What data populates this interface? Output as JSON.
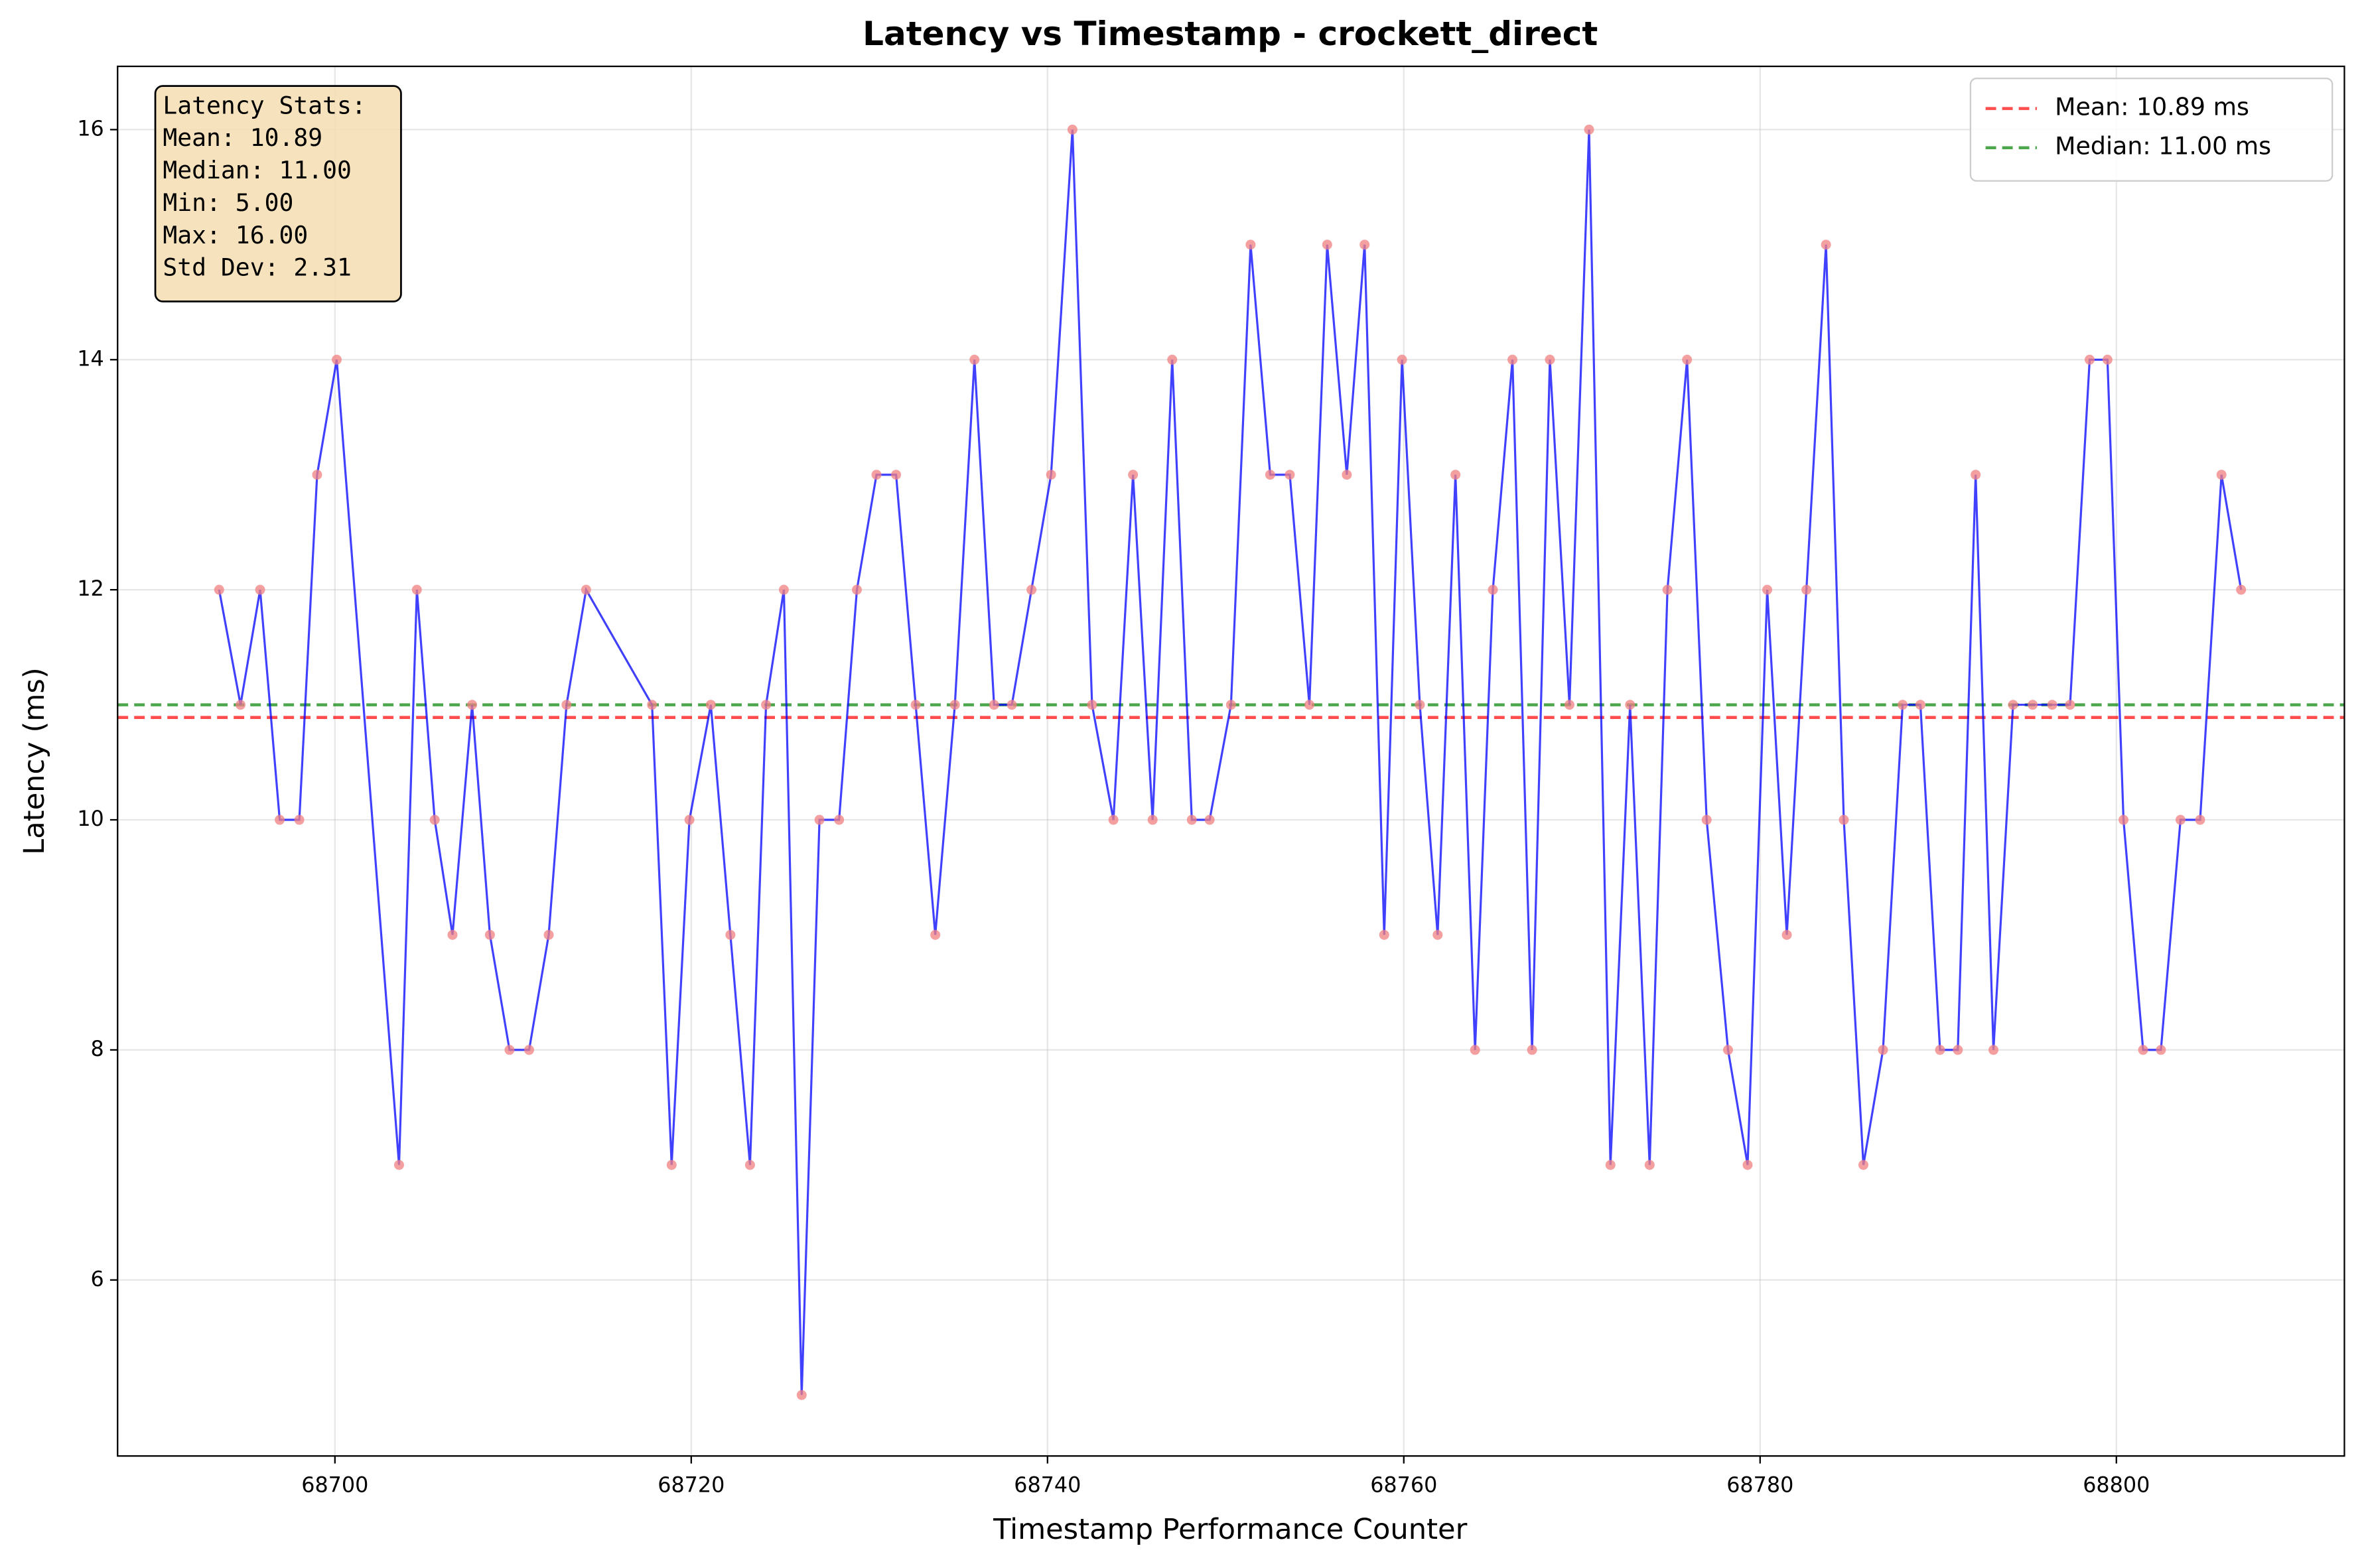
{
  "chart_data": {
    "type": "line",
    "title": "Latency vs Timestamp - crockett_direct",
    "x_label": "Timestamp Performance Counter",
    "y_label": "Latency (ms)",
    "xlim": [
      68687.8,
      68812.8
    ],
    "ylim": [
      4.47,
      16.55
    ],
    "xticks": [
      68700,
      68720,
      68740,
      68760,
      68780,
      68800
    ],
    "yticks": [
      6,
      8,
      10,
      12,
      14,
      16
    ],
    "grid": true,
    "legend_position": "upper right",
    "x": [
      68693.5,
      68694.7,
      68695.8,
      68696.9,
      68698.0,
      68699.0,
      68700.1,
      68703.6,
      68704.6,
      68705.6,
      68706.6,
      68707.7,
      68708.7,
      68709.8,
      68710.9,
      68712.0,
      68713.0,
      68714.1,
      68717.8,
      68718.9,
      68719.9,
      68721.1,
      68722.2,
      68723.3,
      68724.2,
      68725.2,
      68726.2,
      68727.2,
      68728.3,
      68729.3,
      68730.4,
      68731.5,
      68732.6,
      68733.7,
      68734.8,
      68735.9,
      68737.0,
      68738.0,
      68739.1,
      68740.2,
      68741.4,
      68742.5,
      68743.7,
      68744.8,
      68745.9,
      68747.0,
      68748.1,
      68749.1,
      68750.3,
      68751.4,
      68752.5,
      68753.6,
      68754.7,
      68755.7,
      68756.8,
      68757.8,
      68758.9,
      68759.9,
      68760.9,
      68761.9,
      68762.9,
      68764.0,
      68765.0,
      68766.1,
      68767.2,
      68768.2,
      68769.3,
      68770.4,
      68771.6,
      68772.7,
      68773.8,
      68774.8,
      68775.9,
      68777.0,
      68778.2,
      68779.3,
      68780.4,
      68781.5,
      68782.6,
      68783.7,
      68784.7,
      68785.8,
      68786.9,
      68788.0,
      68789.0,
      68790.1,
      68791.1,
      68792.1,
      68793.1,
      68794.2,
      68795.3,
      68796.4,
      68797.4,
      68798.5,
      68799.5,
      68800.4,
      68801.5,
      68802.5,
      68803.6,
      68804.7,
      68805.9,
      68807.0
    ],
    "series": [
      {
        "color": "#0000ff",
        "marker_color": "#f08080",
        "values": [
          12,
          11,
          12,
          10,
          10,
          13,
          14,
          7,
          12,
          10,
          9,
          11,
          9,
          8,
          8,
          9,
          11,
          12,
          11,
          7,
          10,
          11,
          9,
          7,
          11,
          12,
          5,
          10,
          10,
          12,
          13,
          13,
          11,
          9,
          11,
          14,
          11,
          11,
          12,
          13,
          16,
          11,
          10,
          13,
          10,
          14,
          10,
          10,
          11,
          15,
          13,
          13,
          11,
          15,
          13,
          15,
          9,
          14,
          11,
          9,
          13,
          8,
          12,
          14,
          8,
          14,
          11,
          16,
          7,
          11,
          7,
          12,
          14,
          10,
          8,
          7,
          12,
          9,
          12,
          15,
          10,
          7,
          8,
          11,
          11,
          8,
          8,
          13,
          8,
          11,
          11,
          11,
          11,
          14,
          14,
          10,
          8,
          8,
          10,
          10,
          13,
          12
        ]
      }
    ],
    "reference_lines": [
      {
        "name": "Mean: 10.89 ms",
        "value": 10.89,
        "color": "#ff0000"
      },
      {
        "name": "Median: 11.00 ms",
        "value": 11.0,
        "color": "#008000"
      }
    ],
    "stats_box": {
      "lines": [
        "Latency Stats:",
        "Mean: 10.89",
        "Median: 11.00",
        "Min: 5.00",
        "Max: 16.00",
        "Std Dev: 2.31"
      ]
    }
  }
}
